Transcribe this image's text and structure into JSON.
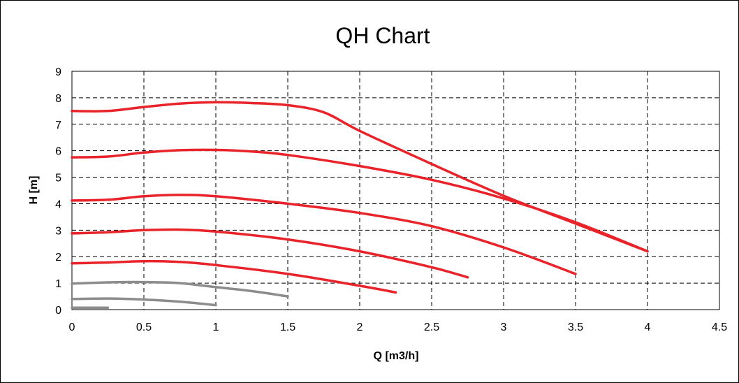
{
  "chart_data": {
    "type": "line",
    "title": "QH Chart",
    "xlabel": "Q [m3/h]",
    "ylabel": "H [m]",
    "xlim": [
      0,
      4.5
    ],
    "ylim": [
      0,
      9
    ],
    "x_ticks": [
      "0",
      "0.5",
      "1",
      "1.5",
      "2",
      "2.5",
      "3",
      "3.5",
      "4",
      "4.5"
    ],
    "y_ticks": [
      "0",
      "1",
      "2",
      "3",
      "4",
      "5",
      "6",
      "7",
      "8",
      "9"
    ],
    "grid": true,
    "colors": {
      "red": "#e8232a",
      "gray": "#8c8c8c"
    },
    "series": [
      {
        "color": "#e8232a",
        "x": [
          0,
          0.25,
          0.5,
          0.75,
          1,
          1.25,
          1.5,
          1.75,
          2,
          2.5,
          3,
          3.5,
          4
        ],
        "y": [
          7.5,
          7.5,
          7.65,
          7.78,
          7.83,
          7.8,
          7.72,
          7.45,
          6.75,
          5.5,
          4.3,
          3.25,
          2.2
        ]
      },
      {
        "color": "#e8232a",
        "x": [
          0,
          0.25,
          0.5,
          0.75,
          1,
          1.25,
          1.5,
          2,
          2.5,
          3,
          3.5,
          4
        ],
        "y": [
          5.75,
          5.78,
          5.93,
          6.02,
          6.03,
          5.97,
          5.84,
          5.42,
          4.9,
          4.2,
          3.3,
          2.2
        ]
      },
      {
        "color": "#e8232a",
        "x": [
          0,
          0.25,
          0.5,
          0.75,
          1,
          1.5,
          2,
          2.5,
          3,
          3.5
        ],
        "y": [
          4.12,
          4.15,
          4.28,
          4.33,
          4.28,
          4.0,
          3.65,
          3.15,
          2.35,
          1.35
        ]
      },
      {
        "color": "#e8232a",
        "x": [
          0,
          0.25,
          0.5,
          0.75,
          1,
          1.5,
          2,
          2.5,
          2.75
        ],
        "y": [
          2.88,
          2.92,
          3.0,
          3.02,
          2.95,
          2.65,
          2.2,
          1.6,
          1.22
        ]
      },
      {
        "color": "#e8232a",
        "x": [
          0,
          0.25,
          0.5,
          0.75,
          1,
          1.5,
          2,
          2.25
        ],
        "y": [
          1.75,
          1.78,
          1.83,
          1.8,
          1.68,
          1.35,
          0.9,
          0.65
        ]
      },
      {
        "color": "#8c8c8c",
        "x": [
          0,
          0.25,
          0.5,
          0.75,
          1,
          1.25,
          1.5
        ],
        "y": [
          0.98,
          1.03,
          1.04,
          1.0,
          0.85,
          0.7,
          0.5
        ]
      },
      {
        "color": "#8c8c8c",
        "x": [
          0,
          0.25,
          0.5,
          0.75,
          1
        ],
        "y": [
          0.4,
          0.42,
          0.38,
          0.3,
          0.17
        ]
      },
      {
        "color": "#8c8c8c",
        "x": [
          0,
          0.1,
          0.25
        ],
        "y": [
          0.07,
          0.07,
          0.07
        ]
      }
    ]
  }
}
